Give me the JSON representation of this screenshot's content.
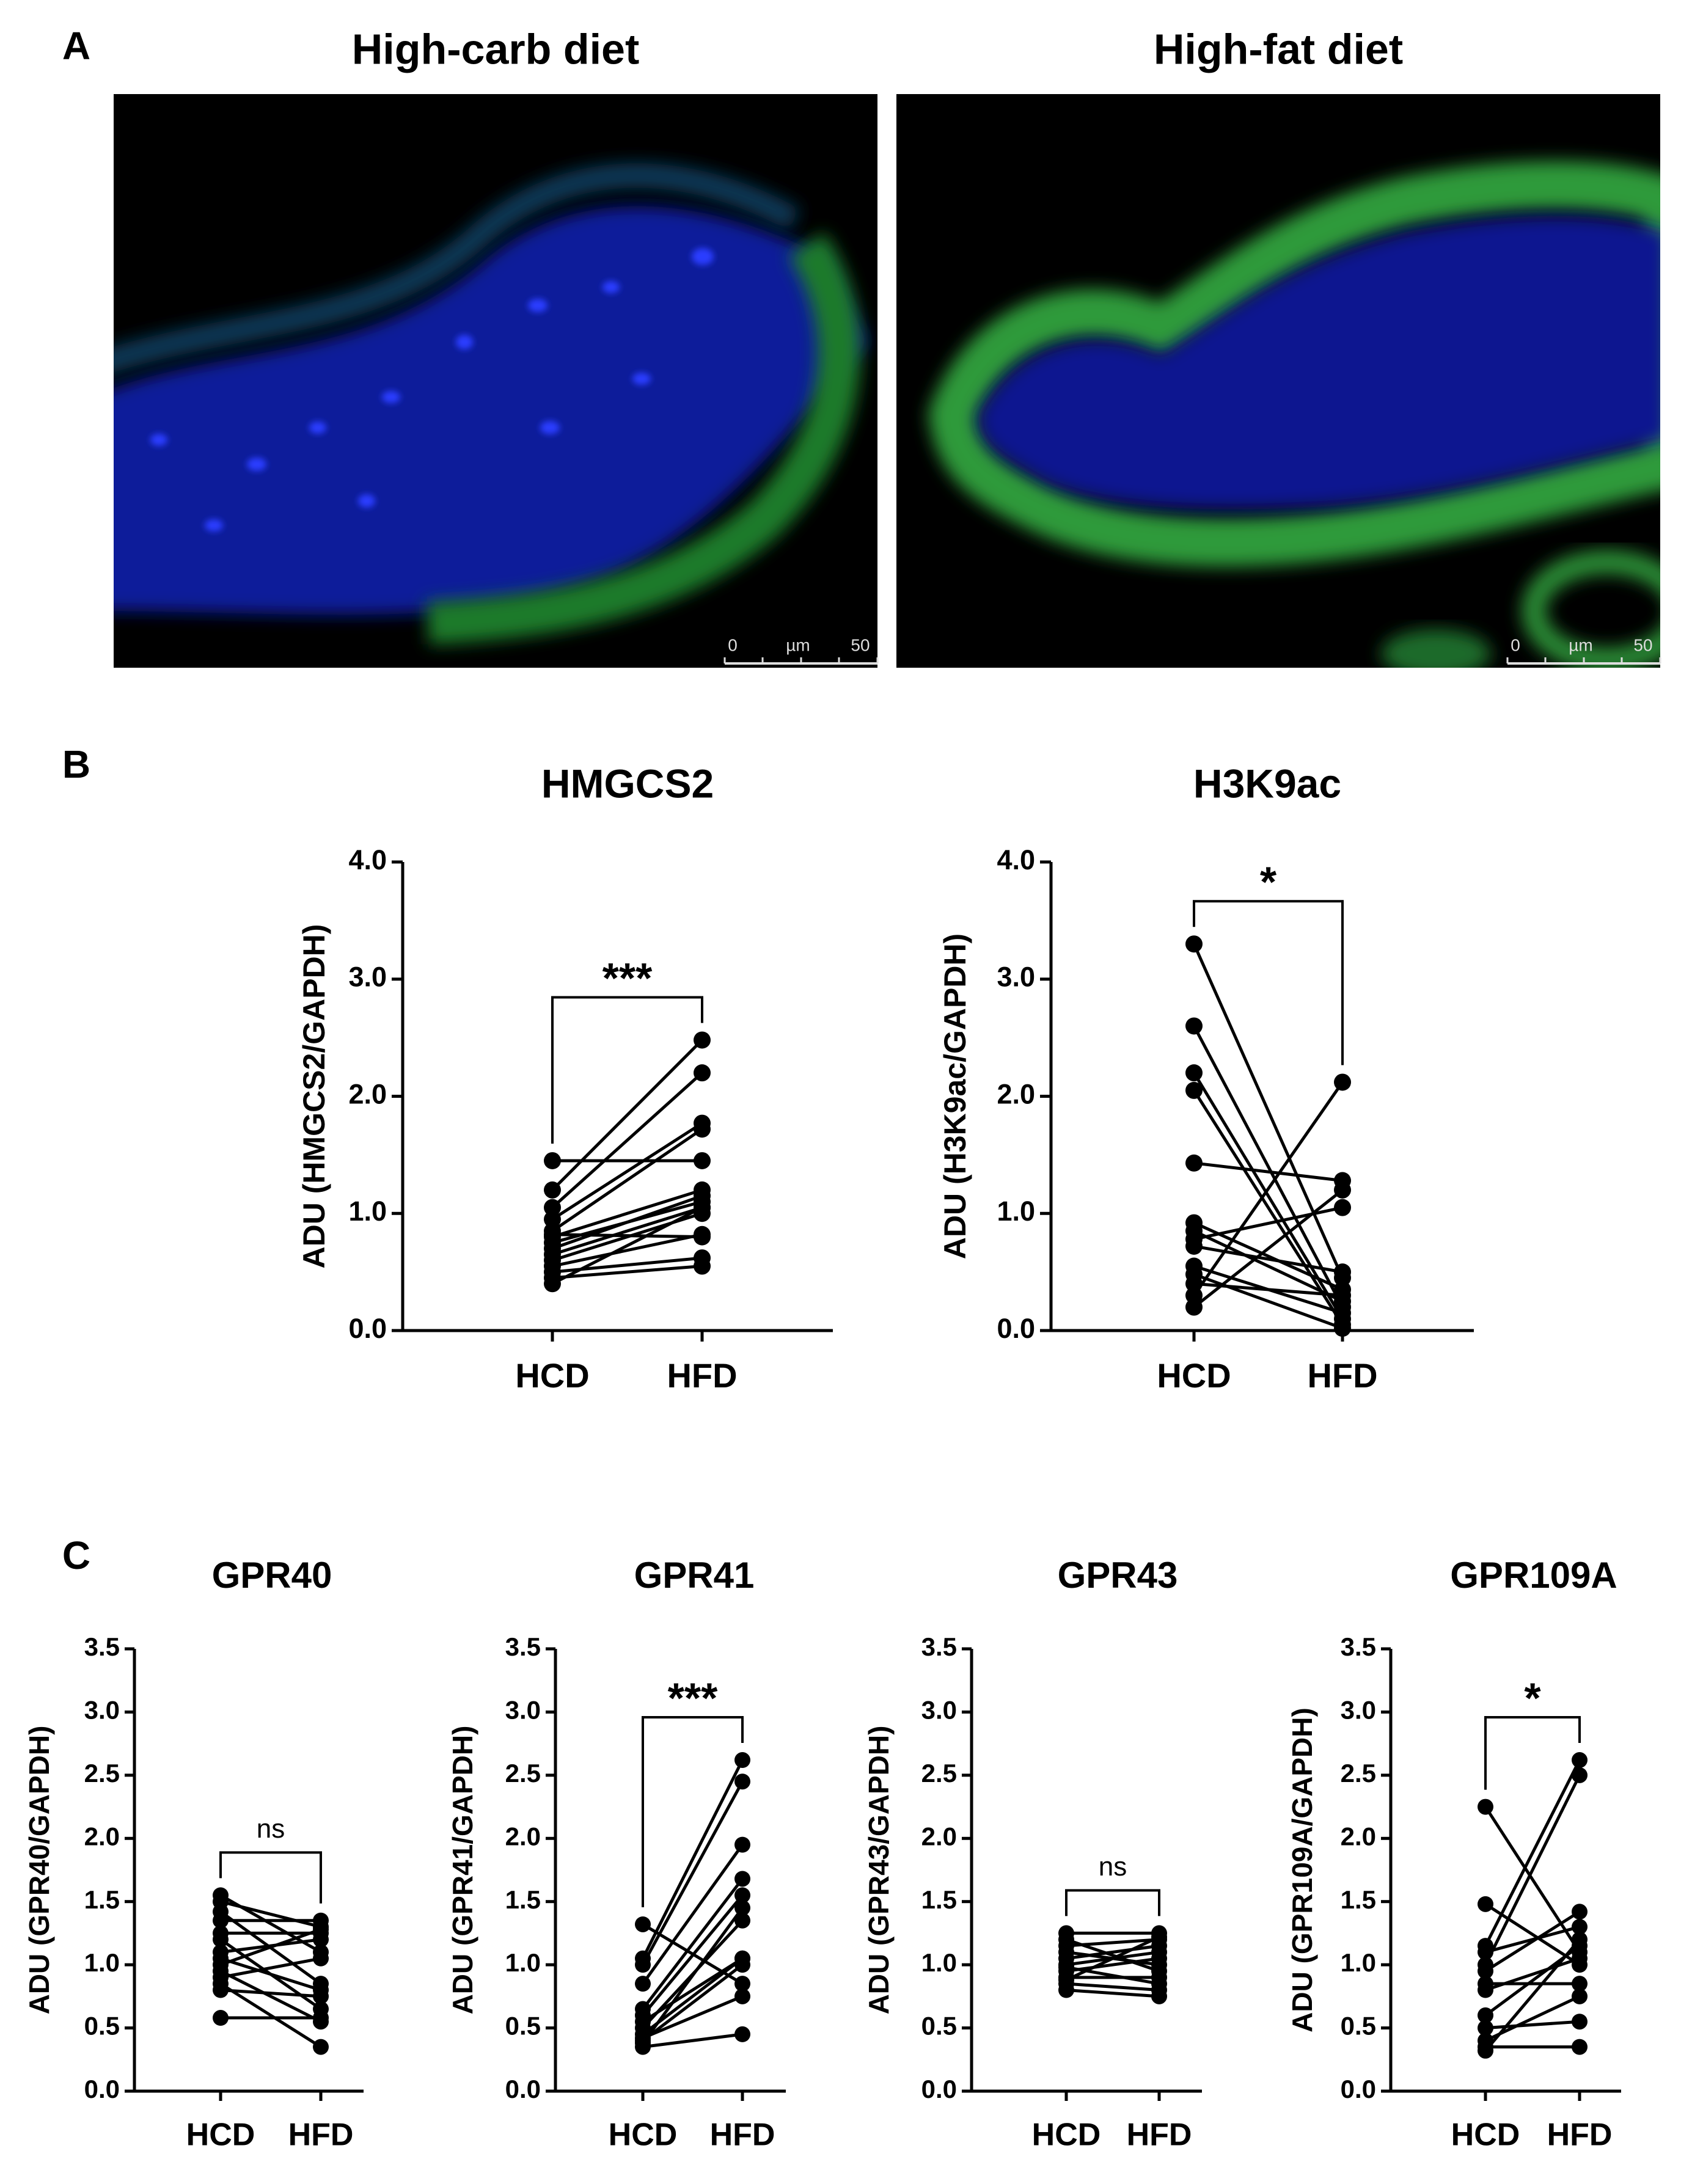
{
  "figure": {
    "panel_labels": [
      "A",
      "B",
      "C"
    ],
    "images": [
      {
        "title": "High-carb diet",
        "scale_bar": [
          "0",
          "µm",
          "50"
        ]
      },
      {
        "title": "High-fat diet",
        "scale_bar": [
          "0",
          "µm",
          "50"
        ]
      }
    ]
  },
  "chart_data": [
    {
      "type": "paired",
      "title": "HMGCS2",
      "y_label": "ADU (HMGCS2/GAPDH)",
      "categories": [
        "HCD",
        "HFD"
      ],
      "color": "#000000",
      "significance": "***",
      "ylim": [
        0,
        4
      ],
      "yticks": [
        {
          "value": 0,
          "label": "0.0"
        },
        {
          "value": 1,
          "label": "1.0"
        },
        {
          "value": 2,
          "label": "2.0"
        },
        {
          "value": 3,
          "label": "3.0"
        },
        {
          "value": 4,
          "label": "4.0"
        }
      ],
      "series": [
        {
          "values": [
            1.45,
            1.45
          ]
        },
        {
          "values": [
            1.2,
            2.48
          ]
        },
        {
          "values": [
            1.05,
            2.2
          ]
        },
        {
          "values": [
            0.95,
            1.77
          ]
        },
        {
          "values": [
            0.85,
            1.72
          ]
        },
        {
          "values": [
            0.8,
            1.2
          ]
        },
        {
          "values": [
            0.75,
            1.1
          ]
        },
        {
          "values": [
            0.7,
            1.15
          ]
        },
        {
          "values": [
            0.65,
            1.05
          ]
        },
        {
          "values": [
            0.6,
            1.0
          ]
        },
        {
          "values": [
            0.55,
            0.82
          ]
        },
        {
          "values": [
            0.5,
            0.62
          ]
        },
        {
          "values": [
            0.45,
            0.55
          ]
        },
        {
          "values": [
            0.4,
            1.05
          ]
        },
        {
          "values": [
            0.82,
            0.8
          ]
        }
      ]
    },
    {
      "type": "paired",
      "title": "H3K9ac",
      "y_label": "ADU (H3K9ac/GAPDH)",
      "categories": [
        "HCD",
        "HFD"
      ],
      "color": "#000000",
      "significance": "*",
      "ylim": [
        0,
        4
      ],
      "yticks": [
        {
          "value": 0,
          "label": "0.0"
        },
        {
          "value": 1,
          "label": "1.0"
        },
        {
          "value": 2,
          "label": "2.0"
        },
        {
          "value": 3,
          "label": "3.0"
        },
        {
          "value": 4,
          "label": "4.0"
        }
      ],
      "series": [
        {
          "values": [
            3.3,
            0.45
          ]
        },
        {
          "values": [
            2.6,
            0.2
          ]
        },
        {
          "values": [
            2.2,
            0.1
          ]
        },
        {
          "values": [
            2.05,
            0.05
          ]
        },
        {
          "values": [
            1.43,
            1.28
          ]
        },
        {
          "values": [
            0.92,
            0.35
          ]
        },
        {
          "values": [
            0.85,
            0.25
          ]
        },
        {
          "values": [
            0.78,
            1.05
          ]
        },
        {
          "values": [
            0.72,
            0.5
          ]
        },
        {
          "values": [
            0.55,
            0.15
          ]
        },
        {
          "values": [
            0.48,
            0.02
          ]
        },
        {
          "values": [
            0.4,
            0.3
          ]
        },
        {
          "values": [
            0.3,
            2.12
          ]
        },
        {
          "values": [
            0.2,
            1.2
          ]
        }
      ]
    },
    {
      "type": "paired",
      "title": "GPR40",
      "y_label": "ADU (GPR40/GAPDH)",
      "categories": [
        "HCD",
        "HFD"
      ],
      "color": "#000000",
      "significance": "ns",
      "ylim": [
        0,
        3.5
      ],
      "yticks": [
        {
          "value": 0,
          "label": "0.0"
        },
        0.5,
        {
          "value": 1,
          "label": "1.0"
        },
        1.5,
        {
          "value": 2,
          "label": "2.0"
        },
        2.5,
        {
          "value": 3,
          "label": "3.0"
        },
        3.5
      ],
      "series": [
        {
          "values": [
            1.55,
            1.1
          ]
        },
        {
          "values": [
            1.5,
            1.3
          ]
        },
        {
          "values": [
            1.42,
            0.85
          ]
        },
        {
          "values": [
            1.35,
            1.35
          ]
        },
        {
          "values": [
            1.25,
            1.25
          ]
        },
        {
          "values": [
            1.2,
            0.65
          ]
        },
        {
          "values": [
            1.1,
            1.2
          ]
        },
        {
          "values": [
            1.05,
            0.8
          ]
        },
        {
          "values": [
            1.0,
            1.28
          ]
        },
        {
          "values": [
            0.95,
            0.55
          ]
        },
        {
          "values": [
            0.9,
            1.05
          ]
        },
        {
          "values": [
            0.85,
            0.35
          ]
        },
        {
          "values": [
            0.8,
            0.75
          ]
        },
        {
          "values": [
            0.58,
            0.58
          ]
        }
      ]
    },
    {
      "type": "paired",
      "title": "GPR41",
      "y_label": "ADU (GPR41/GAPDH)",
      "categories": [
        "HCD",
        "HFD"
      ],
      "color": "#000000",
      "significance": "***",
      "ylim": [
        0,
        3.5
      ],
      "yticks": [
        {
          "value": 0,
          "label": "0.0"
        },
        0.5,
        {
          "value": 1,
          "label": "1.0"
        },
        1.5,
        {
          "value": 2,
          "label": "2.0"
        },
        2.5,
        {
          "value": 3,
          "label": "3.0"
        },
        3.5
      ],
      "series": [
        {
          "values": [
            1.32,
            0.85
          ]
        },
        {
          "values": [
            1.05,
            2.62
          ]
        },
        {
          "values": [
            1.0,
            2.45
          ]
        },
        {
          "values": [
            0.85,
            1.95
          ]
        },
        {
          "values": [
            0.65,
            1.68
          ]
        },
        {
          "values": [
            0.6,
            1.55
          ]
        },
        {
          "values": [
            0.55,
            1.05
          ]
        },
        {
          "values": [
            0.5,
            1.35
          ]
        },
        {
          "values": [
            0.45,
            1.05
          ]
        },
        {
          "values": [
            0.42,
            0.75
          ]
        },
        {
          "values": [
            0.38,
            1.45
          ]
        },
        {
          "values": [
            0.35,
            0.45
          ]
        },
        {
          "values": [
            0.4,
            1.0
          ]
        }
      ]
    },
    {
      "type": "paired",
      "title": "GPR43",
      "y_label": "ADU (GPR43/GAPDH)",
      "categories": [
        "HCD",
        "HFD"
      ],
      "color": "#000000",
      "significance": "ns",
      "ylim": [
        0,
        3.5
      ],
      "yticks": [
        {
          "value": 0,
          "label": "0.0"
        },
        0.5,
        {
          "value": 1,
          "label": "1.0"
        },
        1.5,
        {
          "value": 2,
          "label": "2.0"
        },
        2.5,
        {
          "value": 3,
          "label": "3.0"
        },
        3.5
      ],
      "series": [
        {
          "values": [
            1.25,
            1.25
          ]
        },
        {
          "values": [
            1.2,
            0.95
          ]
        },
        {
          "values": [
            1.15,
            1.2
          ]
        },
        {
          "values": [
            1.1,
            1.0
          ]
        },
        {
          "values": [
            1.05,
            1.15
          ]
        },
        {
          "values": [
            1.0,
            1.1
          ]
        },
        {
          "values": [
            0.98,
            0.85
          ]
        },
        {
          "values": [
            0.95,
            1.05
          ]
        },
        {
          "values": [
            0.9,
            0.9
          ]
        },
        {
          "values": [
            0.85,
            0.8
          ]
        },
        {
          "values": [
            0.8,
            0.75
          ]
        },
        {
          "values": [
            0.88,
            1.22
          ]
        }
      ]
    },
    {
      "type": "paired",
      "title": "GPR109A",
      "y_label": "ADU (GPR109A/GAPDH)",
      "categories": [
        "HCD",
        "HFD"
      ],
      "color": "#000000",
      "significance": "*",
      "ylim": [
        0,
        3.5
      ],
      "yticks": [
        {
          "value": 0,
          "label": "0.0"
        },
        0.5,
        {
          "value": 1,
          "label": "1.0"
        },
        1.5,
        {
          "value": 2,
          "label": "2.0"
        },
        2.5,
        {
          "value": 3,
          "label": "3.0"
        },
        3.5
      ],
      "series": [
        {
          "values": [
            2.25,
            1.1
          ]
        },
        {
          "values": [
            1.48,
            1.0
          ]
        },
        {
          "values": [
            1.15,
            2.62
          ]
        },
        {
          "values": [
            1.1,
            1.3
          ]
        },
        {
          "values": [
            1.0,
            2.5
          ]
        },
        {
          "values": [
            0.95,
            1.42
          ]
        },
        {
          "values": [
            0.85,
            0.85
          ]
        },
        {
          "values": [
            0.8,
            1.05
          ]
        },
        {
          "values": [
            0.6,
            1.15
          ]
        },
        {
          "values": [
            0.5,
            0.55
          ]
        },
        {
          "values": [
            0.4,
            0.75
          ]
        },
        {
          "values": [
            0.35,
            0.35
          ]
        },
        {
          "values": [
            0.32,
            1.2
          ]
        }
      ]
    }
  ]
}
